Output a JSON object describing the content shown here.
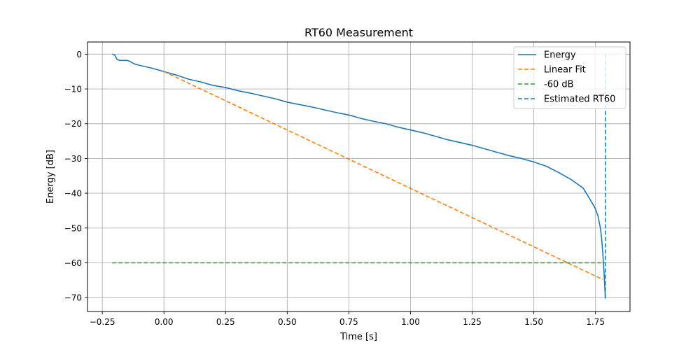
{
  "chart_data": {
    "type": "line",
    "title": "RT60 Measurement",
    "xlabel": "Time [s]",
    "ylabel": "Energy [dB]",
    "xlim": [
      -0.31,
      1.89
    ],
    "ylim": [
      -74,
      3.5
    ],
    "xticks": [
      -0.25,
      0.0,
      0.25,
      0.5,
      0.75,
      1.0,
      1.25,
      1.5,
      1.75
    ],
    "xtick_labels": [
      "−0.25",
      "0.00",
      "0.25",
      "0.50",
      "0.75",
      "1.00",
      "1.25",
      "1.50",
      "1.75"
    ],
    "yticks": [
      0,
      -10,
      -20,
      -30,
      -40,
      -50,
      -60,
      -70
    ],
    "ytick_labels": [
      "0",
      "−10",
      "−20",
      "−30",
      "−40",
      "−50",
      "−60",
      "−70"
    ],
    "grid": true,
    "legend_position": "top-right",
    "series": [
      {
        "name": "Energy",
        "color": "#1f77b4",
        "style": "solid",
        "x": [
          -0.21,
          -0.2,
          -0.19,
          -0.18,
          -0.15,
          -0.14,
          -0.12,
          -0.1,
          -0.05,
          0.0,
          0.05,
          0.1,
          0.15,
          0.2,
          0.25,
          0.3,
          0.35,
          0.4,
          0.45,
          0.5,
          0.55,
          0.6,
          0.65,
          0.7,
          0.75,
          0.8,
          0.85,
          0.9,
          0.95,
          1.0,
          1.05,
          1.1,
          1.15,
          1.2,
          1.25,
          1.3,
          1.35,
          1.4,
          1.45,
          1.5,
          1.55,
          1.6,
          1.65,
          1.7,
          1.73,
          1.75,
          1.76,
          1.77,
          1.775,
          1.78,
          1.785,
          1.79
        ],
        "y": [
          0.0,
          -0.2,
          -1.5,
          -1.8,
          -1.8,
          -2.0,
          -2.8,
          -3.2,
          -4.0,
          -5.0,
          -6.0,
          -7.2,
          -8.0,
          -9.0,
          -9.6,
          -10.5,
          -11.2,
          -12.0,
          -12.8,
          -13.8,
          -14.5,
          -15.2,
          -16.0,
          -16.8,
          -17.5,
          -18.5,
          -19.3,
          -20.0,
          -21.0,
          -21.8,
          -22.6,
          -23.6,
          -24.6,
          -25.4,
          -26.2,
          -27.2,
          -28.2,
          -29.2,
          -30.0,
          -31.0,
          -32.2,
          -34.0,
          -36.0,
          -38.5,
          -42.0,
          -44.5,
          -46.5,
          -50.0,
          -53.0,
          -57.5,
          -63.0,
          -70.3
        ]
      },
      {
        "name": "Linear Fit",
        "color": "#ff7f0e",
        "style": "dashed",
        "x": [
          0.0,
          1.78
        ],
        "y": [
          -5.0,
          -64.8
        ]
      },
      {
        "name": "-60 dB",
        "color": "#2ca02c",
        "style": "dashed",
        "x": [
          -0.21,
          1.79
        ],
        "y": [
          -60,
          -60
        ]
      },
      {
        "name": "Estimated RT60",
        "color": "#1f77b4",
        "style": "dashed",
        "x": [
          1.79,
          1.79
        ],
        "y": [
          0,
          -70.3
        ]
      }
    ]
  }
}
